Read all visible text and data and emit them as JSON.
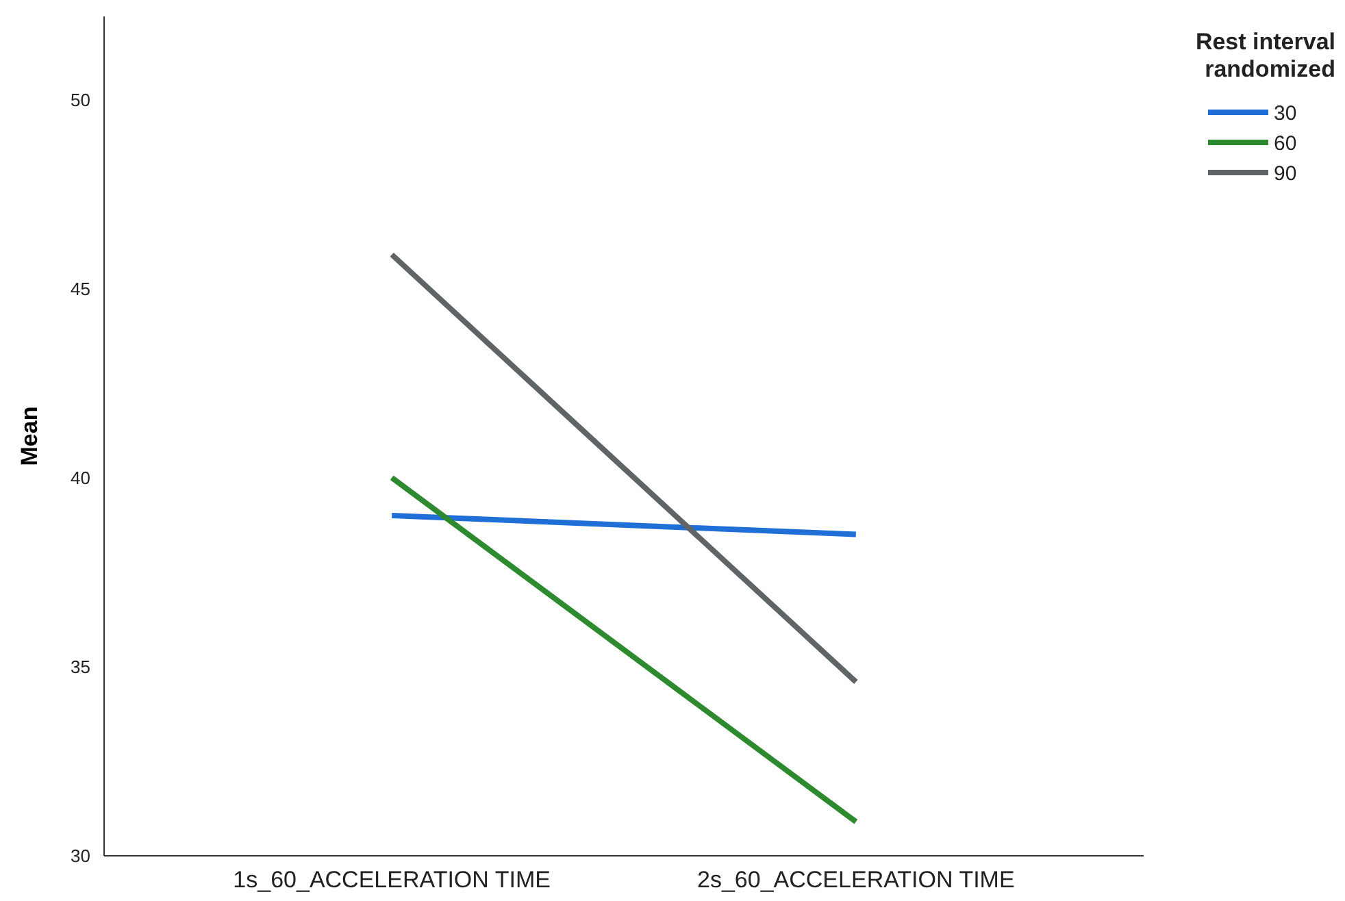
{
  "chart_data": {
    "type": "line",
    "ylabel": "Mean",
    "legend_title": "Rest interval randomized",
    "categories": [
      "1s_60_ACCELERATION TIME",
      "2s_60_ACCELERATION TIME"
    ],
    "series": [
      {
        "name": "30",
        "color": "#1f6fd6",
        "values": [
          39.0,
          38.5
        ]
      },
      {
        "name": "60",
        "color": "#2e8a2e",
        "values": [
          40.0,
          30.9
        ]
      },
      {
        "name": "90",
        "color": "#5f6566",
        "values": [
          45.9,
          34.6
        ]
      }
    ],
    "ylim": [
      30,
      52.2
    ],
    "yticks": [
      30,
      35,
      40,
      45,
      50
    ],
    "grid": false,
    "legend": "top right",
    "marker": "none",
    "line_style": "solid"
  }
}
